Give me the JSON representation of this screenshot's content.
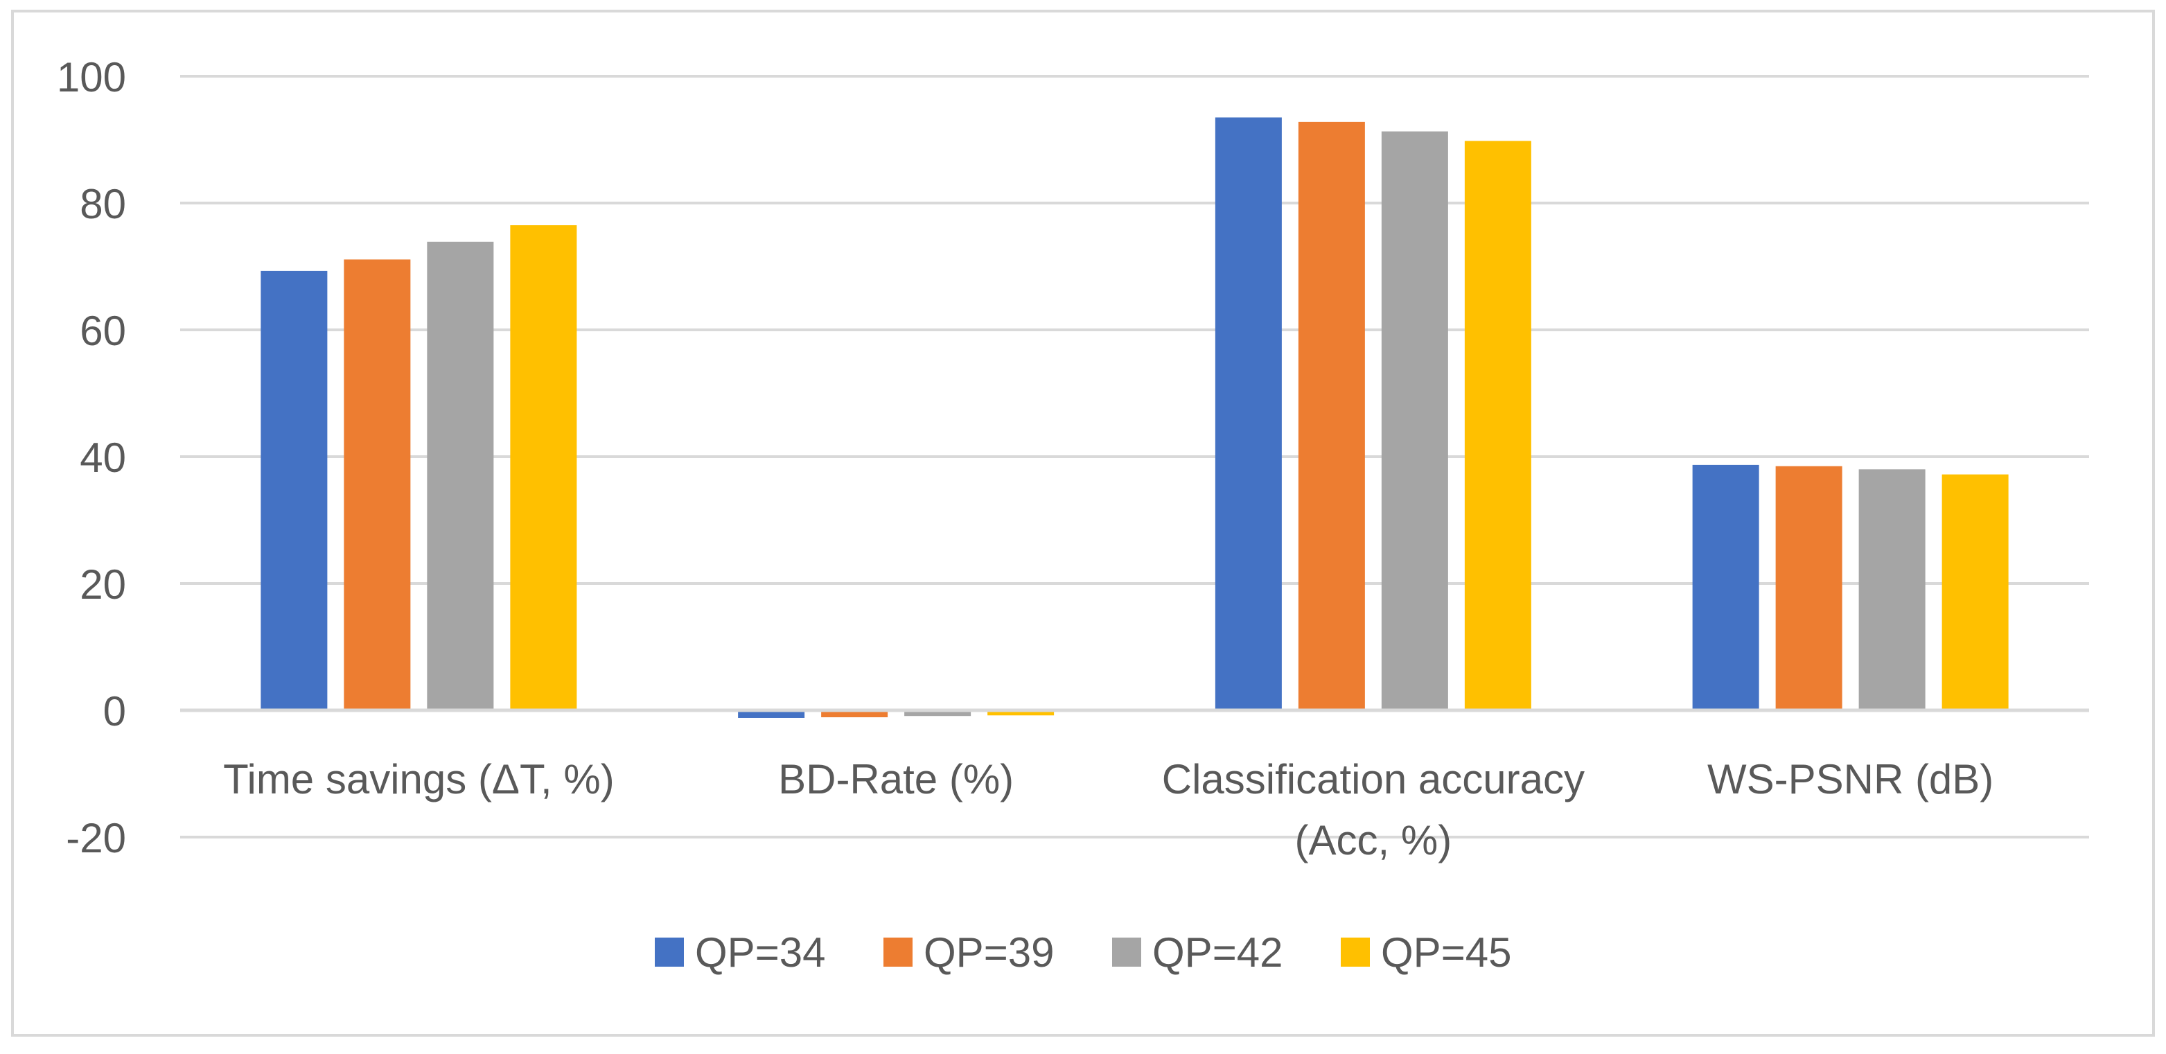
{
  "chart_data": {
    "type": "bar",
    "title": "",
    "xlabel": "",
    "ylabel": "",
    "ylim": [
      -20,
      100
    ],
    "yticks": [
      100,
      80,
      60,
      40,
      20,
      0,
      -20
    ],
    "grid": true,
    "legend_position": "bottom",
    "categories": [
      [
        "Time savings (ΔT, %)"
      ],
      [
        "BD-Rate (%)"
      ],
      [
        "Classification accuracy",
        "(Acc, %)"
      ],
      [
        "WS-PSNR (dB)"
      ]
    ],
    "series": [
      {
        "name": "QP=34",
        "color": "#4472C4",
        "values": [
          69.3,
          -1.2,
          93.5,
          38.7
        ]
      },
      {
        "name": "QP=39",
        "color": "#ED7D31",
        "values": [
          71.1,
          -1.1,
          92.8,
          38.5
        ]
      },
      {
        "name": "QP=42",
        "color": "#A5A5A5",
        "values": [
          73.9,
          -0.9,
          91.3,
          38.0
        ]
      },
      {
        "name": "QP=45",
        "color": "#FFC000",
        "values": [
          76.5,
          -0.8,
          89.8,
          37.2
        ]
      }
    ],
    "colors": {
      "grid": "#D9D9D9",
      "axis_text": "#595959",
      "border": "#D9D9D9"
    }
  }
}
